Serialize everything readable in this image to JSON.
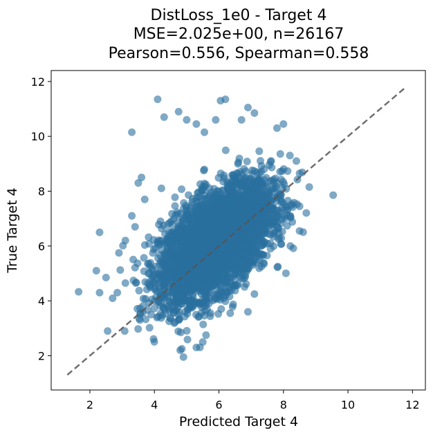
{
  "chart_data": {
    "type": "scatter",
    "title_lines": [
      "DistLoss_1e0 - Target 4",
      "MSE=2.025e+00, n=26167",
      "Pearson=0.556, Spearman=0.558"
    ],
    "xlabel": "Predicted Target 4",
    "ylabel": "True Target 4",
    "xlim": [
      0.8,
      12.4
    ],
    "ylim": [
      0.75,
      12.4
    ],
    "xticks": [
      2,
      4,
      6,
      8,
      10,
      12
    ],
    "yticks": [
      2,
      4,
      6,
      8,
      10,
      12
    ],
    "grid": false,
    "point_color": "#2a6f9e",
    "point_alpha": 0.6,
    "reference_line": {
      "style": "dashed",
      "color": "#555555",
      "from": [
        1.3,
        1.3
      ],
      "to": [
        11.8,
        11.8
      ]
    },
    "n": 26167,
    "pearson": 0.556,
    "spearman": 0.558,
    "cluster": {
      "x_center": 5.9,
      "y_center": 6.15,
      "x_std": 0.85,
      "y_std": 1.05
    },
    "points": [
      [
        4.1,
        11.35
      ],
      [
        6.2,
        11.35
      ],
      [
        6.05,
        11.3
      ],
      [
        6.9,
        11.05
      ],
      [
        3.3,
        10.15
      ],
      [
        4.3,
        10.7
      ],
      [
        4.75,
        10.9
      ],
      [
        5.0,
        10.6
      ],
      [
        5.9,
        10.6
      ],
      [
        7.1,
        10.85
      ],
      [
        5.3,
        10.45
      ],
      [
        6.7,
        10.6
      ],
      [
        5.55,
        10.15
      ],
      [
        8.0,
        10.45
      ],
      [
        7.8,
        10.3
      ],
      [
        2.3,
        6.5
      ],
      [
        1.65,
        4.33
      ],
      [
        2.2,
        5.1
      ],
      [
        2.3,
        4.3
      ],
      [
        2.55,
        2.9
      ],
      [
        2.5,
        4.85
      ],
      [
        2.85,
        4.3
      ],
      [
        3.55,
        3.3
      ],
      [
        4.8,
        2.2
      ],
      [
        4.9,
        1.95
      ],
      [
        4.85,
        2.25
      ],
      [
        5.5,
        2.5
      ],
      [
        5.3,
        2.3
      ],
      [
        5.6,
        2.75
      ],
      [
        3.9,
        3.5
      ],
      [
        8.5,
        6.55
      ],
      [
        8.5,
        7.45
      ],
      [
        8.8,
        8.15
      ],
      [
        8.5,
        8.65
      ],
      [
        8.2,
        9.3
      ],
      [
        8.4,
        9.1
      ],
      [
        8.05,
        7.0
      ],
      [
        7.6,
        5.9
      ],
      [
        7.4,
        5.35
      ],
      [
        7.1,
        4.25
      ],
      [
        6.35,
        3.55
      ],
      [
        6.9,
        3.6
      ],
      [
        3.5,
        8.3
      ],
      [
        3.7,
        7.7
      ],
      [
        3.3,
        7.1
      ],
      [
        3.6,
        8.5
      ],
      [
        3.1,
        6.2
      ],
      [
        2.9,
        5.75
      ],
      [
        3.1,
        4.65
      ],
      [
        3.4,
        6.7
      ]
    ]
  }
}
